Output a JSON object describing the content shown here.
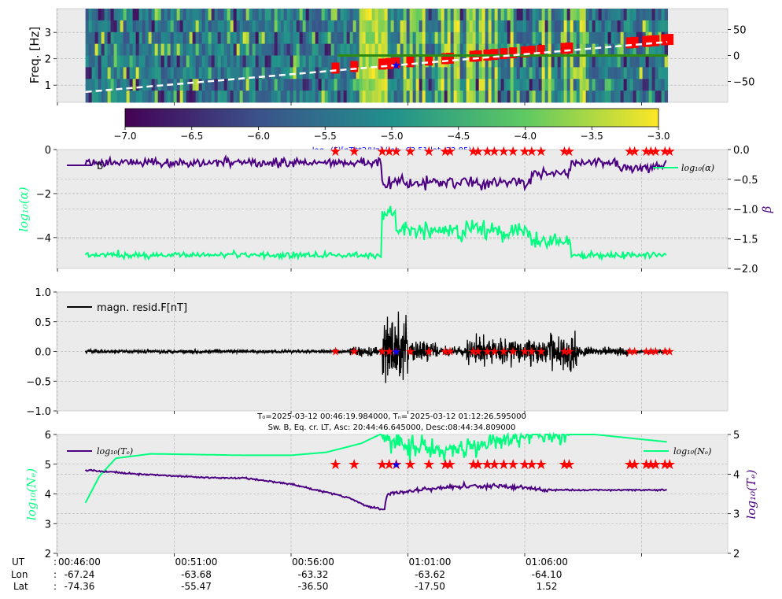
{
  "figure": {
    "colorbar": {
      "ticks": [
        "−7.0",
        "−6.5",
        "−6.0",
        "−5.5",
        "−5.0",
        "−4.5",
        "−4.0",
        "−3.5",
        "−3.0"
      ],
      "label": "log₁₀(F)[nT**2/Hz] (lon -63.51,lat -22.85)",
      "range": [
        -7.0,
        -3.0
      ],
      "colors": [
        "#440154",
        "#3b528b",
        "#21918c",
        "#5ec962",
        "#fde725"
      ]
    },
    "mid_title_line1": "T₀=2025-03-12 00:46:19.984000, Tₙ= 2025-03-12 01:12:26.595000",
    "mid_title_line2": "Sw. B, Eq. cr. LT, Asc: 20:44:46.645000, Desc:08:44:34.809000",
    "footer": {
      "row_labels": [
        "UT",
        "Lon",
        "Lat"
      ],
      "colon": ":",
      "columns": [
        {
          "ut": "00:46:00",
          "lon": "-67.24",
          "lat": "-74.36"
        },
        {
          "ut": "00:51:00",
          "lon": "-63.68",
          "lat": "-55.47"
        },
        {
          "ut": "00:56:00",
          "lon": "-63.32",
          "lat": "-36.50"
        },
        {
          "ut": "01:01:00",
          "lon": "-63.62",
          "lat": "-17.50"
        },
        {
          "ut": "01:06:00",
          "lon": "-64.10",
          "lat": "1.52"
        }
      ]
    },
    "colors": {
      "ne": "#00ff7f",
      "te": "#4b0082",
      "alpha": "#00ff7f",
      "beta": "#4b0082",
      "event": "#ff0000",
      "marker": "#0000ff",
      "resid": "#000000",
      "dashed": "#ffffff",
      "green_line": "#2e8b0f"
    }
  },
  "chart_data": [
    {
      "type": "heatmap",
      "ylabel": "Freq. [Hz]",
      "yticks": [
        "1",
        "2",
        "3"
      ],
      "ylim": [
        0.35,
        3.9
      ],
      "y2ticks": [
        "50",
        "0",
        "−50"
      ],
      "y2lim": [
        -90,
        90
      ],
      "xlim_minutes": [
        0,
        26.5
      ],
      "dashed_line": {
        "x_min": [
          1.2,
          26.1
        ],
        "y2": [
          -70,
          26
        ]
      },
      "green_line": {
        "x_min": [
          12.0,
          26.1
        ],
        "y2": 0
      }
    },
    {
      "type": "line",
      "ylabel": "log₁₀(α)",
      "y2label": "β",
      "yticks": [
        "0",
        "−2",
        "−4"
      ],
      "ylim": [
        -5.4,
        0
      ],
      "y2ticks": [
        "0.0",
        "−0.5",
        "−1.0",
        "−1.5",
        "−2.0"
      ],
      "y2lim": [
        -2.0,
        0.0
      ],
      "series": [
        {
          "name": "b",
          "axis": "right",
          "baseline": -0.22,
          "disturbed": -0.55
        },
        {
          "name": "log₁₀(α)",
          "axis": "left",
          "baseline": -4.8,
          "disturbed": -3.7
        }
      ]
    },
    {
      "type": "line",
      "legend": "magn. resid.F[nT]",
      "yticks": [
        "1.0",
        "0.5",
        "0.0",
        "−0.5",
        "−1.0"
      ],
      "ylim": [
        -1.0,
        1.0
      ]
    },
    {
      "type": "line",
      "ylabel": "log₁₀(Nₑ)",
      "y2label": "log₁₀(Tₑ)",
      "yticks": [
        "6",
        "5",
        "4",
        "3",
        "2"
      ],
      "ylim": [
        2,
        6
      ],
      "y2ticks": [
        "5",
        "4",
        "3",
        "2"
      ],
      "y2lim": [
        2,
        5
      ],
      "series": [
        {
          "name": "log₁₀(Tₑ)",
          "axis": "right",
          "points_min": [
            [
              1.2,
              4.1
            ],
            [
              3.5,
              4.0
            ],
            [
              5.0,
              3.95
            ],
            [
              7.0,
              3.9
            ],
            [
              8.0,
              3.9
            ],
            [
              10.0,
              3.75
            ],
            [
              12.5,
              3.4
            ],
            [
              13.2,
              3.2
            ],
            [
              14.0,
              3.1
            ],
            [
              14.1,
              3.5
            ],
            [
              17.0,
              3.7
            ],
            [
              19.0,
              3.7
            ],
            [
              21.0,
              3.6
            ],
            [
              26.1,
              3.6
            ]
          ]
        },
        {
          "name": "log₁₀(Nₑ)",
          "axis": "left",
          "points_min": [
            [
              1.2,
              3.7
            ],
            [
              1.8,
              4.6
            ],
            [
              2.5,
              5.2
            ],
            [
              4.0,
              5.35
            ],
            [
              8.0,
              5.3
            ],
            [
              10.0,
              5.3
            ],
            [
              11.5,
              5.4
            ],
            [
              13.0,
              5.7
            ],
            [
              13.8,
              6.0
            ],
            [
              15.0,
              5.6
            ],
            [
              17.0,
              5.5
            ],
            [
              19.0,
              5.8
            ],
            [
              21.0,
              6.0
            ],
            [
              23.0,
              6.0
            ],
            [
              26.1,
              5.75
            ]
          ]
        }
      ]
    }
  ],
  "events_minutes": [
    11.9,
    12.7,
    13.9,
    14.2,
    14.5,
    15.1,
    15.9,
    16.6,
    16.8,
    17.8,
    18.0,
    18.4,
    18.7,
    19.1,
    19.5,
    20.0,
    20.3,
    20.7,
    21.7,
    21.9,
    24.5,
    24.7,
    25.2,
    25.4,
    25.6,
    26.0,
    26.2
  ],
  "marker_minute": 14.5
}
